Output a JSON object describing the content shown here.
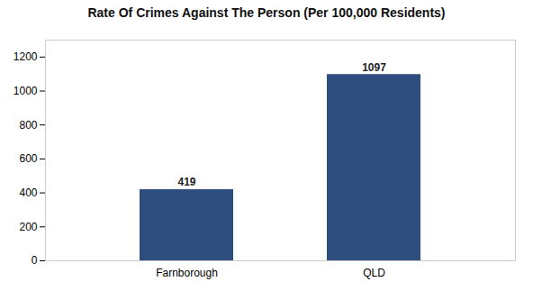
{
  "chart_data": {
    "type": "bar",
    "title": "Rate Of Crimes Against The Person (Per 100,000 Residents)",
    "categories": [
      "Farnborough",
      "QLD"
    ],
    "values": [
      419,
      1097
    ],
    "color": "#2d4e7e",
    "ylim": [
      0,
      1300
    ],
    "yticks": [
      0,
      200,
      400,
      600,
      800,
      1000,
      1200
    ],
    "grid": false,
    "data_labels": true
  }
}
